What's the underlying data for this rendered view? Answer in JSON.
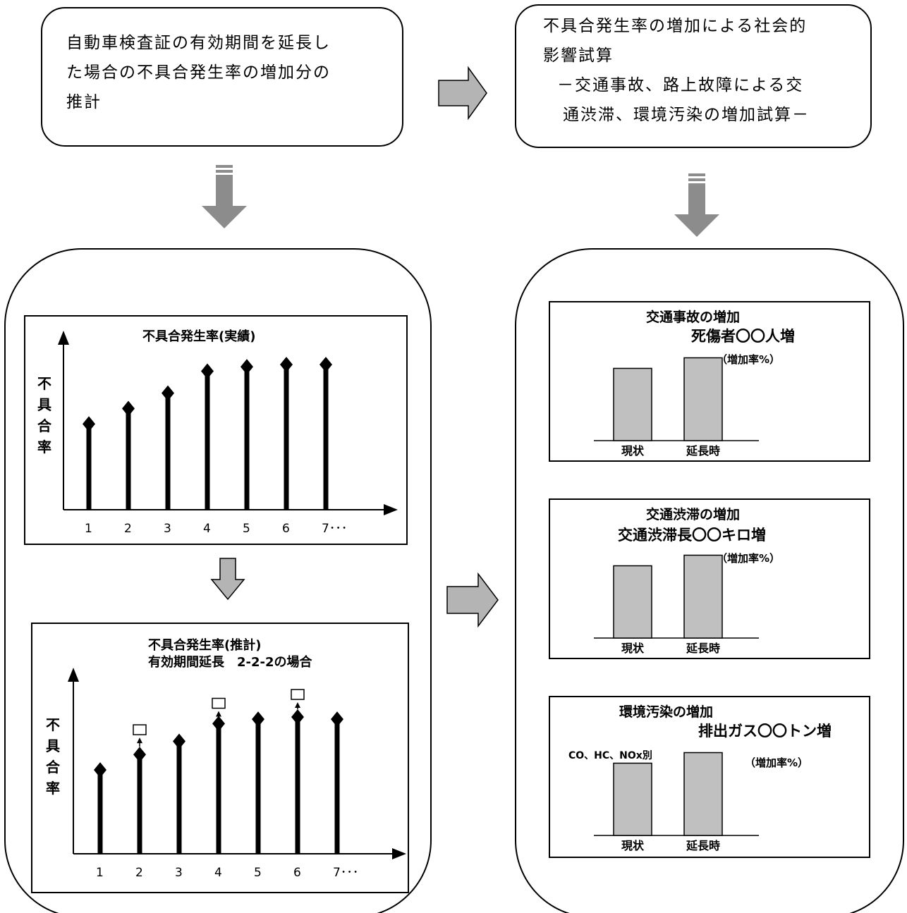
{
  "top_left_box": {
    "lines": [
      "自動車検査証の有効期間を延長し",
      "た場合の不具合発生率の増加分の",
      "推計"
    ]
  },
  "top_right_box": {
    "lines": [
      "不具合発生率の増加による社会的",
      "影響試算",
      "－交通事故、路上故障による交",
      "通渋滞、環境汚染の増加試算－"
    ]
  },
  "chart_actual": {
    "title": "不具合発生率(実績)",
    "ylabel_chars": [
      "不",
      "具",
      "合",
      "率"
    ],
    "chart_data": {
      "type": "bar",
      "categories": [
        "1",
        "2",
        "3",
        "4",
        "5",
        "6",
        "7･･･"
      ],
      "values": [
        3.9,
        4.6,
        5.3,
        6.3,
        6.5,
        6.6,
        6.6
      ],
      "ylim": [
        0,
        7.5
      ]
    }
  },
  "chart_estimate": {
    "title_line1": "不具合発生率(推計)",
    "title_line2": "有効期間延長　2-2-2の場合",
    "ylabel_chars": [
      "不",
      "具",
      "合",
      "率"
    ],
    "chart_data": {
      "type": "bar",
      "categories": [
        "1",
        "2",
        "3",
        "4",
        "5",
        "6",
        "7･･･"
      ],
      "values": [
        3.8,
        4.5,
        5.1,
        5.9,
        6.1,
        6.2,
        6.1
      ],
      "increased": [
        null,
        5.4,
        null,
        6.6,
        null,
        7.0,
        null
      ],
      "ylim": [
        0,
        7.8
      ]
    }
  },
  "impact_charts": [
    {
      "line1": "交通事故の増加",
      "line2": "死傷者〇〇人増",
      "note": "（増加率%）",
      "extra": "",
      "categories": [
        "現状",
        "延長時"
      ],
      "values": [
        4.1,
        4.7
      ]
    },
    {
      "line1": "交通渋滞の増加",
      "line2": "交通渋滞長〇〇キロ増",
      "note": "（増加率%）",
      "extra": "",
      "categories": [
        "現状",
        "延長時"
      ],
      "values": [
        4.1,
        4.7
      ]
    },
    {
      "line1": "環境汚染の増加",
      "line2": "排出ガス〇〇トン増",
      "note": "（増加率%）",
      "extra": "CO、HC、NOx別",
      "categories": [
        "現状",
        "延長時"
      ],
      "values": [
        4.1,
        4.7
      ]
    }
  ],
  "colors": {
    "bar_fill": "#c0c0c0",
    "arrow_fill": "#b4b4b4",
    "arrow_dark": "#8c8c8c"
  }
}
